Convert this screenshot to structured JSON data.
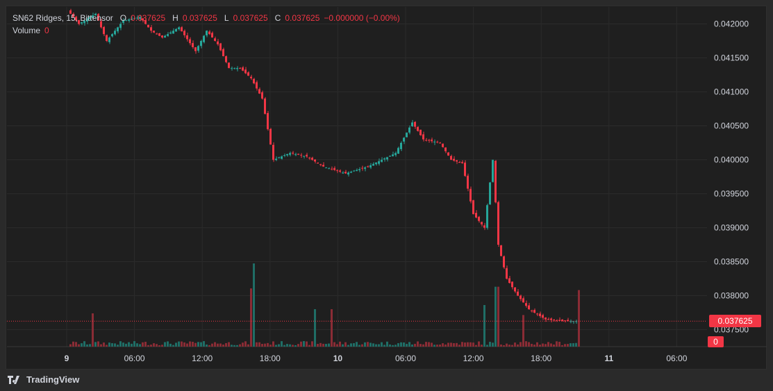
{
  "legend": {
    "symbol": "SN62 Ridges, 15, Bittensor",
    "o_key": "O",
    "o_val": "0.037625",
    "h_key": "H",
    "h_val": "0.037625",
    "l_key": "L",
    "l_val": "0.037625",
    "c_key": "C",
    "c_val": "0.037625",
    "change": "−0.000000 (−0.00%)",
    "volume_label": "Volume",
    "volume_value": "0"
  },
  "brand": {
    "name": "TradingView"
  },
  "colors": {
    "up": "#26a69a",
    "down": "#f23645",
    "vol_up": "#1f6e66",
    "vol_down": "#8a2c35",
    "grid": "#2b2b2b",
    "text": "#d1d4dc"
  },
  "chart_data": {
    "type": "candlestick",
    "interval": "15",
    "ylim": [
      0.03725,
      0.04225
    ],
    "y_ticks": [
      "0.042000",
      "0.041500",
      "0.041000",
      "0.040500",
      "0.040000",
      "0.039500",
      "0.039000",
      "0.038500",
      "0.038000",
      "0.037500"
    ],
    "x_ticks": [
      "9",
      "06:00",
      "12:00",
      "18:00",
      "10",
      "06:00",
      "12:00",
      "18:00",
      "11",
      "06:00"
    ],
    "last_price": "0.037625",
    "last_volume": "0",
    "price_path": [
      {
        "t": 0,
        "p": 0.0422
      },
      {
        "t": 4,
        "p": 0.042
      },
      {
        "t": 10,
        "p": 0.04215
      },
      {
        "t": 14,
        "p": 0.04175
      },
      {
        "t": 20,
        "p": 0.04205
      },
      {
        "t": 26,
        "p": 0.0421
      },
      {
        "t": 30,
        "p": 0.0419
      },
      {
        "t": 34,
        "p": 0.0418
      },
      {
        "t": 40,
        "p": 0.04195
      },
      {
        "t": 46,
        "p": 0.0416
      },
      {
        "t": 50,
        "p": 0.0419
      },
      {
        "t": 54,
        "p": 0.0417
      },
      {
        "t": 58,
        "p": 0.04135
      },
      {
        "t": 62,
        "p": 0.04135
      },
      {
        "t": 66,
        "p": 0.0412
      },
      {
        "t": 70,
        "p": 0.0409
      },
      {
        "t": 74,
        "p": 0.04
      },
      {
        "t": 80,
        "p": 0.0401
      },
      {
        "t": 86,
        "p": 0.04005
      },
      {
        "t": 92,
        "p": 0.0399
      },
      {
        "t": 100,
        "p": 0.0398
      },
      {
        "t": 108,
        "p": 0.0399
      },
      {
        "t": 118,
        "p": 0.0401
      },
      {
        "t": 124,
        "p": 0.04055
      },
      {
        "t": 128,
        "p": 0.0403
      },
      {
        "t": 134,
        "p": 0.04025
      },
      {
        "t": 138,
        "p": 0.04
      },
      {
        "t": 142,
        "p": 0.03995
      },
      {
        "t": 146,
        "p": 0.0392
      },
      {
        "t": 150,
        "p": 0.039
      },
      {
        "t": 153,
        "p": 0.04
      },
      {
        "t": 155,
        "p": 0.03875
      },
      {
        "t": 158,
        "p": 0.03825
      },
      {
        "t": 162,
        "p": 0.038
      },
      {
        "t": 166,
        "p": 0.0378
      },
      {
        "t": 172,
        "p": 0.03765
      },
      {
        "t": 178,
        "p": 0.037625
      },
      {
        "t": 183,
        "p": 0.037625
      }
    ],
    "volume_spikes": [
      {
        "t": 8,
        "v": 0.4,
        "up": false
      },
      {
        "t": 65,
        "v": 0.7,
        "up": false
      },
      {
        "t": 66,
        "v": 1.0,
        "up": true
      },
      {
        "t": 88,
        "v": 0.45,
        "up": true
      },
      {
        "t": 94,
        "v": 0.45,
        "up": false
      },
      {
        "t": 149,
        "v": 0.5,
        "up": true
      },
      {
        "t": 153,
        "v": 0.72,
        "up": true
      },
      {
        "t": 154,
        "v": 0.72,
        "up": false
      },
      {
        "t": 163,
        "v": 0.38,
        "up": false
      },
      {
        "t": 183,
        "v": 0.68,
        "up": false
      }
    ]
  }
}
